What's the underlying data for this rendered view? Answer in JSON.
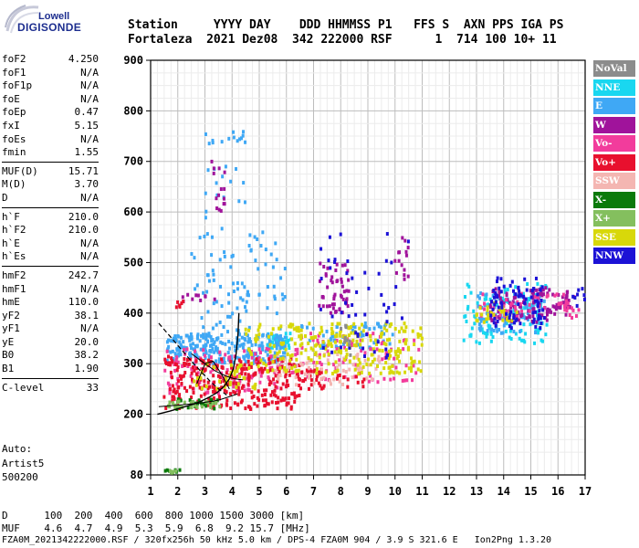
{
  "logo": {
    "line1": "Lowell",
    "line2": "DIGISONDE"
  },
  "header": {
    "line1": "Station     YYYY DAY    DDD HHMMSS P1   FFS S  AXN PPS IGA PS",
    "line2": "Fortaleza  2021 Dez08  342 222000 RSF      1  714 100 10+ 11"
  },
  "params": {
    "g1": [
      {
        "k": "foF2",
        "v": "4.250"
      },
      {
        "k": "foF1",
        "v": "N/A"
      },
      {
        "k": "foF1p",
        "v": "N/A"
      },
      {
        "k": "foE",
        "v": "N/A"
      },
      {
        "k": "foEp",
        "v": "0.47"
      },
      {
        "k": "fxI",
        "v": "5.15"
      },
      {
        "k": "foEs",
        "v": "N/A"
      },
      {
        "k": "fmin",
        "v": "1.55"
      }
    ],
    "g2": [
      {
        "k": "MUF(D)",
        "v": "15.71"
      },
      {
        "k": "M(D)",
        "v": "3.70"
      },
      {
        "k": "D",
        "v": "N/A"
      }
    ],
    "g3": [
      {
        "k": "h`F",
        "v": "210.0"
      },
      {
        "k": "h`F2",
        "v": "210.0"
      },
      {
        "k": "h`E",
        "v": "N/A"
      },
      {
        "k": "h`Es",
        "v": "N/A"
      }
    ],
    "g4": [
      {
        "k": "hmF2",
        "v": "242.7"
      },
      {
        "k": "hmF1",
        "v": "N/A"
      },
      {
        "k": "hmE",
        "v": "110.0"
      },
      {
        "k": "yF2",
        "v": "38.1"
      },
      {
        "k": "yF1",
        "v": "N/A"
      },
      {
        "k": "yE",
        "v": "20.0"
      },
      {
        "k": "B0",
        "v": "38.2"
      },
      {
        "k": "B1",
        "v": "1.90"
      }
    ],
    "g5": [
      {
        "k": "C-level",
        "v": "33"
      }
    ]
  },
  "auto": {
    "l1": "Auto:",
    "l2": "Artist5",
    "l3": "500200"
  },
  "legend": [
    {
      "label": "NoVal",
      "color": "#8c8c8c"
    },
    {
      "label": "NNE",
      "color": "#19d7f0"
    },
    {
      "label": "E",
      "color": "#3fa8f5"
    },
    {
      "label": "W",
      "color": "#a0139b"
    },
    {
      "label": "Vo-",
      "color": "#f23c9c"
    },
    {
      "label": "Vo+",
      "color": "#e8102e"
    },
    {
      "label": "SSW",
      "color": "#f4b6b2"
    },
    {
      "label": "X-",
      "color": "#0b7a0b"
    },
    {
      "label": "X+",
      "color": "#84bf5e"
    },
    {
      "label": "SSE",
      "color": "#d8d80a"
    },
    {
      "label": "NNW",
      "color": "#1c12d6"
    }
  ],
  "footer": {
    "muf_line1": "D      100  200  400  600  800 1000 1500 3000 [km]",
    "muf_line2": "MUF    4.6  4.7  4.9  5.3  5.9  6.8  9.2 15.7 [MHz]",
    "file_line": "FZA0M_2021342222000.RSF / 320fx256h 50 kHz 5.0 km / DPS-4 FZA0M 904 / 3.9 S 321.6 E   Ion2Png 1.3.20"
  },
  "chart_data": {
    "type": "scatter",
    "xlim": [
      1,
      17
    ],
    "ylim": [
      80,
      900
    ],
    "x_ticks": [
      1,
      2,
      3,
      4,
      5,
      6,
      7,
      8,
      9,
      10,
      11,
      12,
      13,
      14,
      15,
      16,
      17
    ],
    "y_ticks": [
      80,
      200,
      300,
      400,
      500,
      600,
      700,
      800,
      900
    ],
    "clusters": [
      {
        "name": "NNE",
        "color": "#19d7f0",
        "regions": [
          [
            12.5,
            15.6,
            340,
            460,
            120
          ],
          [
            5.3,
            6.2,
            330,
            360,
            40
          ]
        ]
      },
      {
        "name": "E",
        "color": "#3fa8f5",
        "regions": [
          [
            1.6,
            6.0,
            300,
            360,
            260
          ],
          [
            2.5,
            6.0,
            360,
            560,
            90
          ],
          [
            3.0,
            4.5,
            560,
            760,
            30
          ],
          [
            6.5,
            10.0,
            330,
            380,
            60
          ],
          [
            13.0,
            15.5,
            360,
            440,
            80
          ]
        ]
      },
      {
        "name": "W",
        "color": "#a0139b",
        "regions": [
          [
            2.0,
            3.5,
            420,
            440,
            10
          ],
          [
            7.2,
            8.3,
            400,
            500,
            50
          ],
          [
            13.5,
            16.5,
            380,
            450,
            120
          ],
          [
            3.2,
            3.8,
            600,
            700,
            15
          ],
          [
            10.0,
            10.5,
            450,
            550,
            15
          ]
        ]
      },
      {
        "name": "Vo-",
        "color": "#f23c9c",
        "regions": [
          [
            1.5,
            6.5,
            240,
            330,
            120
          ],
          [
            6.5,
            11.0,
            260,
            360,
            80
          ],
          [
            13.0,
            16.8,
            390,
            440,
            60
          ]
        ]
      },
      {
        "name": "Vo+",
        "color": "#e8102e",
        "regions": [
          [
            1.5,
            6.5,
            210,
            310,
            280
          ],
          [
            6.5,
            9.0,
            250,
            290,
            40
          ],
          [
            1.5,
            1.8,
            300,
            330,
            8
          ],
          [
            1.9,
            2.2,
            410,
            425,
            6
          ]
        ]
      },
      {
        "name": "SSW",
        "color": "#f4b6b2",
        "regions": [
          [
            5.5,
            9.5,
            250,
            320,
            60
          ]
        ]
      },
      {
        "name": "X-",
        "color": "#0b7a0b",
        "regions": [
          [
            1.5,
            2.1,
            84,
            90,
            8
          ],
          [
            1.9,
            3.5,
            210,
            230,
            25
          ]
        ]
      },
      {
        "name": "X+",
        "color": "#84bf5e",
        "regions": [
          [
            1.6,
            3.6,
            212,
            226,
            30
          ],
          [
            1.7,
            2.0,
            84,
            88,
            5
          ]
        ]
      },
      {
        "name": "SSE",
        "color": "#d8d80a",
        "regions": [
          [
            4.5,
            11.0,
            280,
            380,
            260
          ],
          [
            2.5,
            5.0,
            250,
            300,
            40
          ],
          [
            13.0,
            14.5,
            380,
            420,
            30
          ]
        ]
      },
      {
        "name": "NNW",
        "color": "#1c12d6",
        "regions": [
          [
            7.2,
            10.5,
            300,
            560,
            50
          ],
          [
            13.5,
            15.5,
            370,
            470,
            80
          ],
          [
            16.5,
            17.0,
            410,
            450,
            8
          ]
        ]
      },
      {
        "name": "NoVal",
        "color": "#8c8c8c",
        "regions": [
          [
            8.0,
            8.4,
            310,
            380,
            10
          ]
        ]
      }
    ],
    "profile_curve": {
      "x": [
        1.25,
        1.7,
        2.2,
        2.7,
        3.1,
        3.45,
        3.7,
        3.9,
        4.05,
        4.15,
        4.22,
        4.25
      ],
      "y": [
        200,
        206,
        214,
        222,
        232,
        243,
        255,
        270,
        290,
        320,
        360,
        400
      ]
    },
    "dashed_curve": {
      "x": [
        1.3,
        1.7,
        2.1,
        2.5,
        2.9,
        3.2,
        3.5,
        3.8
      ],
      "y": [
        380,
        355,
        330,
        305,
        282,
        265,
        250,
        238
      ]
    },
    "trace_curves": [
      {
        "x": [
          1.3,
          2.0,
          2.8,
          3.5,
          4.2
        ],
        "y": [
          215,
          218,
          222,
          228,
          240
        ]
      },
      {
        "x": [
          2.5,
          3.0,
          3.4,
          3.8,
          4.1,
          4.4
        ],
        "y": [
          320,
          300,
          285,
          275,
          270,
          268
        ]
      },
      {
        "x": [
          2.7,
          3.0,
          3.3,
          3.6,
          3.9
        ],
        "y": [
          260,
          300,
          305,
          280,
          250
        ]
      }
    ]
  }
}
